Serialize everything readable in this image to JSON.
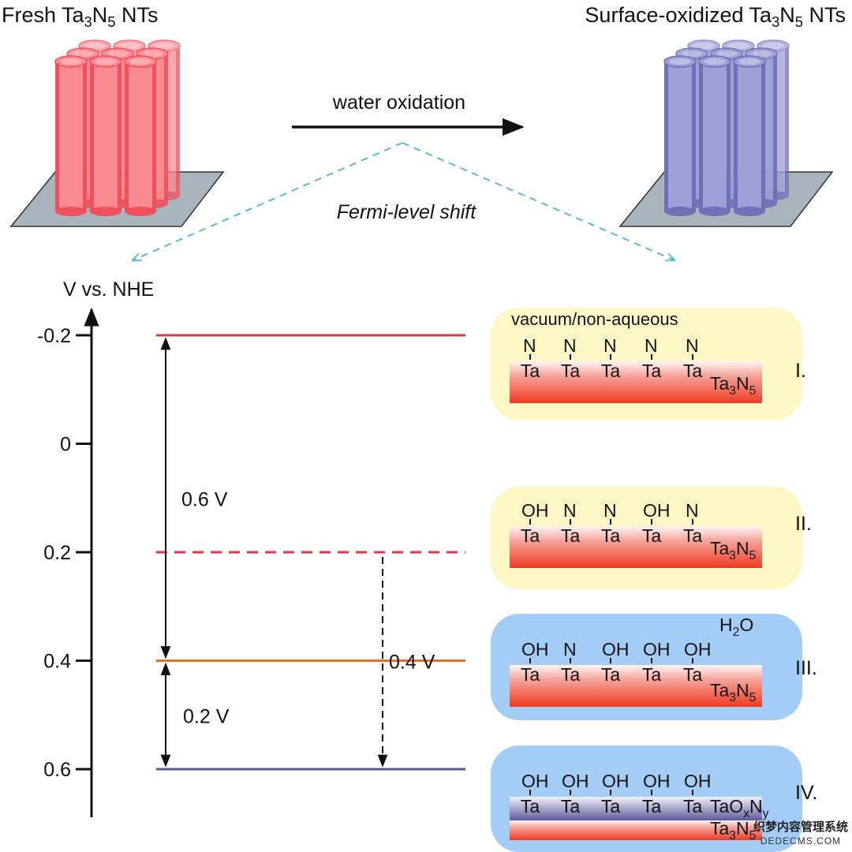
{
  "header": {
    "left_title": [
      [
        "Fresh Ta",
        ""
      ],
      [
        "3",
        "sub"
      ],
      [
        "N",
        ""
      ],
      [
        "5",
        "sub"
      ],
      [
        " NTs",
        ""
      ]
    ],
    "right_title": [
      [
        "Surface-oxidized Ta",
        ""
      ],
      [
        "3",
        "sub"
      ],
      [
        "N",
        ""
      ],
      [
        "5",
        "sub"
      ],
      [
        " NTs",
        ""
      ]
    ],
    "process_label": "water oxidation",
    "shift_label": "Fermi-level shift"
  },
  "colors": {
    "fresh_tube": "#f98a92",
    "fresh_tube_edge": "#f0505c",
    "oxidized_tube": "#9d9fd6",
    "oxidized_tube_edge": "#6e70b8",
    "substrate": "#a9b5bd",
    "dashed_guide": "#5bb8dc",
    "level_minus_0_2": "#e23a44",
    "level_0_2": "#e23a44",
    "level_0_4": "#e8701e",
    "level_0_6": "#55579a",
    "panel_nonaqueous": "#fdf7c6",
    "panel_aqueous": "#a3cdf6"
  },
  "axis": {
    "label": "V vs. NHE",
    "ticks": [
      {
        "value": -0.2,
        "label": "-0.2"
      },
      {
        "value": 0,
        "label": "0"
      },
      {
        "value": 0.2,
        "label": "0.2"
      },
      {
        "value": 0.4,
        "label": "0.4"
      },
      {
        "value": 0.6,
        "label": "0.6"
      }
    ]
  },
  "levels": [
    {
      "value": -0.2,
      "style": "solid"
    },
    {
      "value": 0.2,
      "style": "dashed"
    },
    {
      "value": 0.4,
      "style": "solid"
    },
    {
      "value": 0.6,
      "style": "solid"
    }
  ],
  "gaps": [
    {
      "from": -0.2,
      "to": 0.4,
      "label": "0.6 V",
      "style": "solid"
    },
    {
      "from": 0.4,
      "to": 0.6,
      "label": "0.2 V",
      "style": "solid"
    },
    {
      "from": 0.2,
      "to": 0.6,
      "label": "0.4 V",
      "style": "dashed"
    }
  ],
  "panels": [
    {
      "numeral": "I.",
      "environment": "nonaqueous",
      "note": "vacuum/non-aqueous",
      "groups": [
        "N",
        "N",
        "N",
        "N",
        "N"
      ],
      "base_atom": "Ta",
      "bulk": [
        [
          "Ta",
          ""
        ],
        [
          "3",
          "sub"
        ],
        [
          "N",
          ""
        ],
        [
          "5",
          "sub"
        ]
      ]
    },
    {
      "numeral": "II.",
      "environment": "nonaqueous",
      "note": "",
      "groups": [
        "OH",
        "N",
        "N",
        "OH",
        "N"
      ],
      "base_atom": "Ta",
      "bulk": [
        [
          "Ta",
          ""
        ],
        [
          "3",
          "sub"
        ],
        [
          "N",
          ""
        ],
        [
          "5",
          "sub"
        ]
      ]
    },
    {
      "numeral": "III.",
      "environment": "aqueous",
      "note": [
        [
          "H",
          ""
        ],
        [
          "2",
          "sub"
        ],
        [
          "O",
          ""
        ]
      ],
      "groups": [
        "OH",
        "N",
        "OH",
        "OH",
        "OH"
      ],
      "base_atom": "Ta",
      "bulk": [
        [
          "Ta",
          ""
        ],
        [
          "3",
          "sub"
        ],
        [
          "N",
          ""
        ],
        [
          "5",
          "sub"
        ]
      ]
    },
    {
      "numeral": "IV.",
      "environment": "aqueous",
      "note": "",
      "groups": [
        "OH",
        "OH",
        "OH",
        "OH",
        "OH"
      ],
      "base_atom": "Ta",
      "surface_layer": [
        [
          "TaO",
          ""
        ],
        [
          "x",
          "sub"
        ],
        [
          "N",
          ""
        ],
        [
          "y",
          "sub"
        ]
      ],
      "bulk": [
        [
          "Ta",
          ""
        ],
        [
          "3",
          "sub"
        ],
        [
          "N",
          ""
        ],
        [
          "5",
          "sub"
        ]
      ]
    }
  ],
  "watermark": {
    "line1": "织梦内容管理系统",
    "line2": "DEDECMS.COM"
  }
}
